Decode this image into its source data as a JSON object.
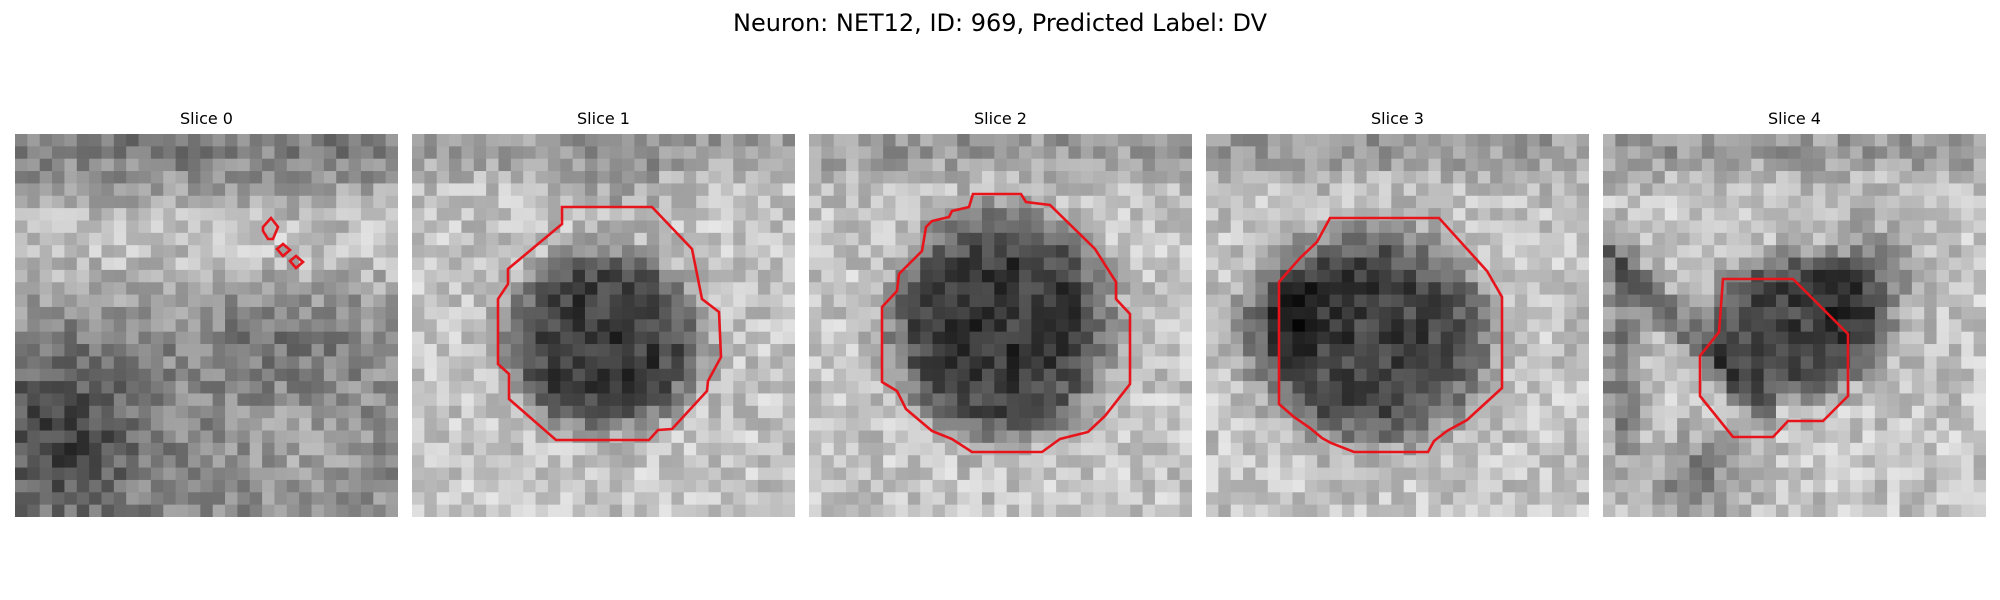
{
  "figure": {
    "title": "Neuron: NET12, ID: 969, Predicted Label: DV"
  },
  "panels": [
    {
      "title": "Slice 0",
      "pattern": "mottled-bright-top-dark-bottom-left",
      "contour_color": "#e8141c"
    },
    {
      "title": "Slice 1",
      "pattern": "dark-round-nucleus",
      "contour_color": "#e8141c"
    },
    {
      "title": "Slice 2",
      "pattern": "dark-round-nucleus-large",
      "contour_color": "#e8141c"
    },
    {
      "title": "Slice 3",
      "pattern": "medium-dark-round-nucleus",
      "contour_color": "#e8141c"
    },
    {
      "title": "Slice 4",
      "pattern": "small-dark-nucleus-with-dark-bands",
      "contour_color": "#e8141c"
    }
  ],
  "colormap": "grayscale",
  "contour_color": "#e8141c"
}
